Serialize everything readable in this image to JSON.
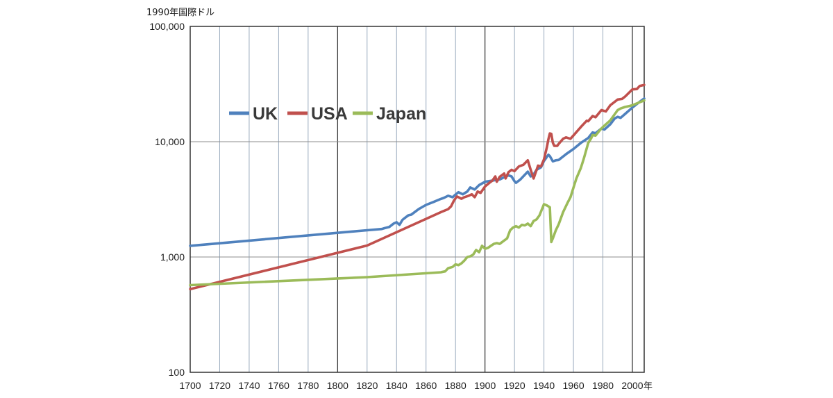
{
  "chart_data": {
    "type": "line",
    "y_unit_label": "1990年国際ドル",
    "x_unit_label": "年",
    "y_scale": "log",
    "ylim": [
      100,
      100000
    ],
    "xlim": [
      1700,
      2008
    ],
    "x_ticks": [
      "1700",
      "1720",
      "1740",
      "1760",
      "1780",
      "1800",
      "1820",
      "1840",
      "1860",
      "1880",
      "1900",
      "1920",
      "1940",
      "1960",
      "1980",
      "2000"
    ],
    "y_ticks": [
      "100",
      "1,000",
      "10,000",
      "100,000"
    ],
    "y_tick_values": [
      100,
      1000,
      10000,
      100000
    ],
    "grid": true,
    "legend_position": "upper-left",
    "series": [
      {
        "name": "UK",
        "color": "#4f81bd",
        "points": [
          [
            1700,
            1250
          ],
          [
            1820,
            1706
          ],
          [
            1830,
            1749
          ],
          [
            1832,
            1780
          ],
          [
            1835,
            1820
          ],
          [
            1838,
            1950
          ],
          [
            1840,
            2000
          ],
          [
            1842,
            1900
          ],
          [
            1844,
            2100
          ],
          [
            1846,
            2200
          ],
          [
            1848,
            2300
          ],
          [
            1850,
            2330
          ],
          [
            1855,
            2600
          ],
          [
            1860,
            2830
          ],
          [
            1865,
            3000
          ],
          [
            1870,
            3190
          ],
          [
            1872,
            3250
          ],
          [
            1875,
            3400
          ],
          [
            1878,
            3300
          ],
          [
            1880,
            3480
          ],
          [
            1882,
            3650
          ],
          [
            1885,
            3500
          ],
          [
            1888,
            3700
          ],
          [
            1890,
            4010
          ],
          [
            1893,
            3850
          ],
          [
            1896,
            4200
          ],
          [
            1900,
            4490
          ],
          [
            1905,
            4600
          ],
          [
            1910,
            4700
          ],
          [
            1913,
            4920
          ],
          [
            1916,
            5100
          ],
          [
            1918,
            5000
          ],
          [
            1920,
            4550
          ],
          [
            1921,
            4400
          ],
          [
            1924,
            4700
          ],
          [
            1929,
            5500
          ],
          [
            1931,
            5000
          ],
          [
            1933,
            5200
          ],
          [
            1935,
            5700
          ],
          [
            1938,
            6000
          ],
          [
            1940,
            6800
          ],
          [
            1943,
            7700
          ],
          [
            1944,
            7500
          ],
          [
            1946,
            6750
          ],
          [
            1948,
            6900
          ],
          [
            1950,
            6940
          ],
          [
            1955,
            7800
          ],
          [
            1960,
            8650
          ],
          [
            1965,
            9750
          ],
          [
            1970,
            10770
          ],
          [
            1973,
            12020
          ],
          [
            1975,
            11850
          ],
          [
            1979,
            13000
          ],
          [
            1981,
            12750
          ],
          [
            1985,
            14170
          ],
          [
            1988,
            15900
          ],
          [
            1990,
            16430
          ],
          [
            1992,
            16100
          ],
          [
            1995,
            17400
          ],
          [
            2000,
            19800
          ],
          [
            2005,
            22200
          ],
          [
            2008,
            23700
          ]
        ]
      },
      {
        "name": "USA",
        "color": "#c0504d",
        "points": [
          [
            1700,
            527
          ],
          [
            1820,
            1257
          ],
          [
            1870,
            2445
          ],
          [
            1875,
            2600
          ],
          [
            1877,
            2750
          ],
          [
            1879,
            3100
          ],
          [
            1881,
            3350
          ],
          [
            1884,
            3200
          ],
          [
            1886,
            3300
          ],
          [
            1889,
            3400
          ],
          [
            1891,
            3500
          ],
          [
            1893,
            3300
          ],
          [
            1895,
            3700
          ],
          [
            1897,
            3600
          ],
          [
            1900,
            4090
          ],
          [
            1903,
            4400
          ],
          [
            1905,
            4600
          ],
          [
            1907,
            5000
          ],
          [
            1908,
            4500
          ],
          [
            1910,
            4960
          ],
          [
            1913,
            5300
          ],
          [
            1914,
            4800
          ],
          [
            1916,
            5450
          ],
          [
            1918,
            5700
          ],
          [
            1920,
            5550
          ],
          [
            1923,
            6100
          ],
          [
            1926,
            6300
          ],
          [
            1929,
            6900
          ],
          [
            1931,
            5700
          ],
          [
            1933,
            4800
          ],
          [
            1936,
            6200
          ],
          [
            1938,
            6100
          ],
          [
            1940,
            7010
          ],
          [
            1942,
            9000
          ],
          [
            1943,
            10500
          ],
          [
            1944,
            11800
          ],
          [
            1945,
            11700
          ],
          [
            1946,
            9800
          ],
          [
            1947,
            9200
          ],
          [
            1949,
            9200
          ],
          [
            1950,
            9560
          ],
          [
            1953,
            10600
          ],
          [
            1955,
            10900
          ],
          [
            1958,
            10600
          ],
          [
            1960,
            11330
          ],
          [
            1965,
            13400
          ],
          [
            1969,
            15200
          ],
          [
            1970,
            15030
          ],
          [
            1973,
            16690
          ],
          [
            1975,
            16300
          ],
          [
            1979,
            18800
          ],
          [
            1982,
            18300
          ],
          [
            1985,
            20700
          ],
          [
            1990,
            23200
          ],
          [
            1993,
            23500
          ],
          [
            1995,
            24600
          ],
          [
            2000,
            28400
          ],
          [
            2003,
            28600
          ],
          [
            2005,
            30400
          ],
          [
            2008,
            31100
          ]
        ]
      },
      {
        "name": "Japan",
        "color": "#9bbb59",
        "points": [
          [
            1700,
            570
          ],
          [
            1820,
            669
          ],
          [
            1870,
            737
          ],
          [
            1873,
            750
          ],
          [
            1875,
            800
          ],
          [
            1878,
            820
          ],
          [
            1880,
            863
          ],
          [
            1882,
            850
          ],
          [
            1884,
            880
          ],
          [
            1886,
            930
          ],
          [
            1888,
            1000
          ],
          [
            1890,
            1012
          ],
          [
            1892,
            1050
          ],
          [
            1894,
            1150
          ],
          [
            1896,
            1100
          ],
          [
            1898,
            1250
          ],
          [
            1900,
            1180
          ],
          [
            1902,
            1200
          ],
          [
            1904,
            1250
          ],
          [
            1906,
            1300
          ],
          [
            1908,
            1320
          ],
          [
            1910,
            1300
          ],
          [
            1913,
            1390
          ],
          [
            1915,
            1450
          ],
          [
            1917,
            1700
          ],
          [
            1919,
            1800
          ],
          [
            1921,
            1850
          ],
          [
            1923,
            1800
          ],
          [
            1925,
            1900
          ],
          [
            1927,
            1880
          ],
          [
            1929,
            1950
          ],
          [
            1931,
            1850
          ],
          [
            1933,
            2050
          ],
          [
            1935,
            2120
          ],
          [
            1937,
            2300
          ],
          [
            1940,
            2870
          ],
          [
            1942,
            2800
          ],
          [
            1944,
            2700
          ],
          [
            1945,
            1350
          ],
          [
            1946,
            1450
          ],
          [
            1948,
            1700
          ],
          [
            1950,
            1920
          ],
          [
            1953,
            2450
          ],
          [
            1956,
            2950
          ],
          [
            1958,
            3300
          ],
          [
            1960,
            3990
          ],
          [
            1962,
            4800
          ],
          [
            1965,
            5900
          ],
          [
            1967,
            7100
          ],
          [
            1970,
            9710
          ],
          [
            1972,
            10700
          ],
          [
            1973,
            11430
          ],
          [
            1975,
            11300
          ],
          [
            1978,
            12600
          ],
          [
            1980,
            13400
          ],
          [
            1985,
            15300
          ],
          [
            1990,
            18800
          ],
          [
            1992,
            19400
          ],
          [
            1995,
            20000
          ],
          [
            1998,
            20400
          ],
          [
            2000,
            20700
          ],
          [
            2005,
            22000
          ],
          [
            2008,
            22800
          ]
        ]
      }
    ]
  }
}
